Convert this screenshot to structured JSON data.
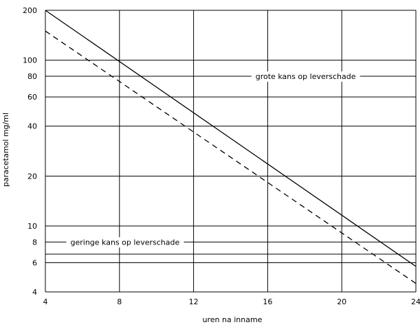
{
  "chart_data": {
    "type": "line",
    "xlabel": "uren na inname",
    "ylabel": "paracetamol mg/ml",
    "xlim": [
      4,
      24
    ],
    "ylim": [
      4,
      200
    ],
    "yscale": "log",
    "grid": true,
    "x_ticks": [
      4,
      8,
      12,
      16,
      20,
      24
    ],
    "y_ticks": [
      4,
      6,
      8,
      10,
      20,
      40,
      60,
      80,
      100,
      200
    ],
    "series": [
      {
        "style": "solid",
        "x": [
          4,
          24
        ],
        "y": [
          200,
          5.7
        ]
      },
      {
        "style": "dashed",
        "x": [
          4,
          24
        ],
        "y": [
          150,
          4.5
        ]
      }
    ],
    "annotations": [
      {
        "text": "grote kans op leverschade",
        "x": 18.05,
        "y": 80
      },
      {
        "text": "geringe kans op leverschade",
        "x": 8.3,
        "y": 8
      }
    ]
  }
}
